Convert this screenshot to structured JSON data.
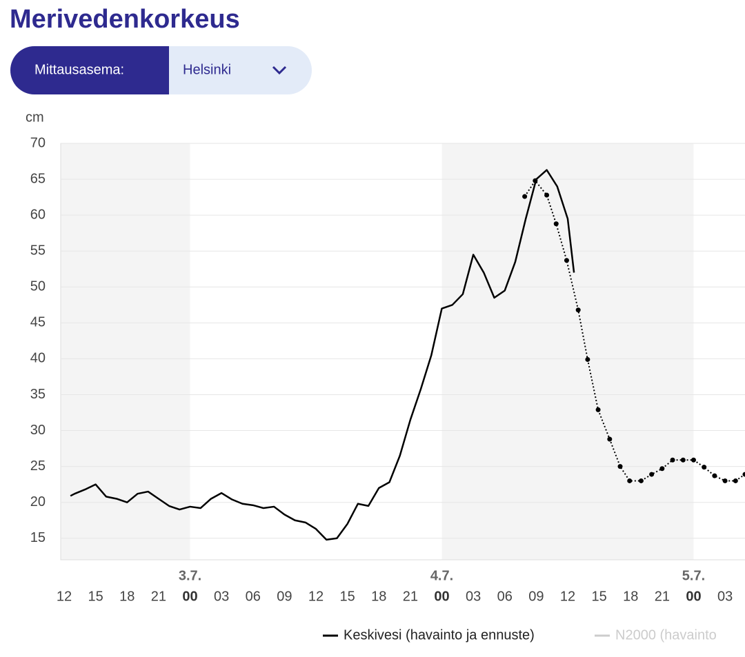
{
  "header": {
    "title": "Merivedenkorkeus"
  },
  "selector": {
    "label": "Mittausasema:",
    "value": "Helsinki"
  },
  "chart_data": {
    "type": "line",
    "y_unit": "cm",
    "xlim": [
      -0.33,
      64.9
    ],
    "ylim": [
      12,
      70
    ],
    "yticks": [
      15,
      20,
      25,
      30,
      35,
      40,
      45,
      50,
      55,
      60,
      65,
      70
    ],
    "xticks": [
      {
        "value": 0,
        "label": "12"
      },
      {
        "value": 3,
        "label": "15"
      },
      {
        "value": 6,
        "label": "18"
      },
      {
        "value": 9,
        "label": "21"
      },
      {
        "value": 12,
        "label": "00"
      },
      {
        "value": 15,
        "label": "03"
      },
      {
        "value": 18,
        "label": "06"
      },
      {
        "value": 21,
        "label": "09"
      },
      {
        "value": 24,
        "label": "12"
      },
      {
        "value": 27,
        "label": "15"
      },
      {
        "value": 30,
        "label": "18"
      },
      {
        "value": 33,
        "label": "21"
      },
      {
        "value": 36,
        "label": "00"
      },
      {
        "value": 39,
        "label": "03"
      },
      {
        "value": 42,
        "label": "06"
      },
      {
        "value": 45,
        "label": "09"
      },
      {
        "value": 48,
        "label": "12"
      },
      {
        "value": 51,
        "label": "15"
      },
      {
        "value": 54,
        "label": "18"
      },
      {
        "value": 57,
        "label": "21"
      },
      {
        "value": 60,
        "label": "00"
      },
      {
        "value": 63,
        "label": "03"
      }
    ],
    "day_labels": [
      {
        "value": 12,
        "label": "3.7."
      },
      {
        "value": 36,
        "label": "4.7."
      },
      {
        "value": 60,
        "label": "5.7."
      }
    ],
    "grid": true,
    "series": [
      {
        "color": "#000000",
        "style": "solid",
        "x": [
          0.6,
          1,
          2,
          3,
          4,
          5,
          6,
          7,
          8,
          9,
          10,
          11,
          12,
          13,
          14,
          15,
          16,
          17,
          18,
          19,
          20,
          21,
          22,
          23,
          24,
          25,
          26,
          27,
          28,
          29,
          30,
          31,
          32,
          33,
          34,
          35,
          36,
          37,
          38,
          39,
          40,
          41,
          42,
          43,
          44,
          45,
          46,
          47,
          48,
          48.6
        ],
        "values": [
          20.9,
          21.2,
          21.8,
          22.5,
          20.8,
          20.5,
          20.0,
          21.2,
          21.5,
          20.5,
          19.5,
          19.0,
          19.4,
          19.2,
          20.5,
          21.3,
          20.4,
          19.8,
          19.6,
          19.2,
          19.4,
          18.3,
          17.5,
          17.2,
          16.3,
          14.8,
          15.0,
          17.0,
          19.8,
          19.5,
          22.0,
          22.8,
          26.5,
          31.5,
          35.8,
          40.5,
          47.0,
          47.5,
          49.0,
          54.5,
          52.0,
          48.5,
          49.5,
          53.5,
          59.5,
          65.0,
          66.3,
          64.0,
          59.5,
          52.0
        ]
      },
      {
        "color": "#000000",
        "style": "dotted",
        "x": [
          43.9,
          44.9,
          46,
          46.9,
          47.9,
          49,
          49.9,
          50.9,
          52,
          53,
          53.9,
          55,
          56,
          57,
          58,
          59,
          60,
          61,
          62,
          63,
          64,
          64.9
        ],
        "values": [
          62.6,
          64.8,
          62.8,
          58.8,
          53.7,
          46.8,
          39.9,
          32.9,
          28.8,
          25.0,
          23.0,
          23.0,
          23.9,
          24.7,
          25.9,
          25.9,
          25.9,
          24.9,
          23.7,
          23.0,
          23.0,
          23.9
        ]
      }
    ],
    "legend": [
      {
        "label": "Keskivesi (havainto ja ennuste)",
        "color": "#000000"
      },
      {
        "label": "N2000 (havainto",
        "color": "#cccccc"
      }
    ]
  }
}
